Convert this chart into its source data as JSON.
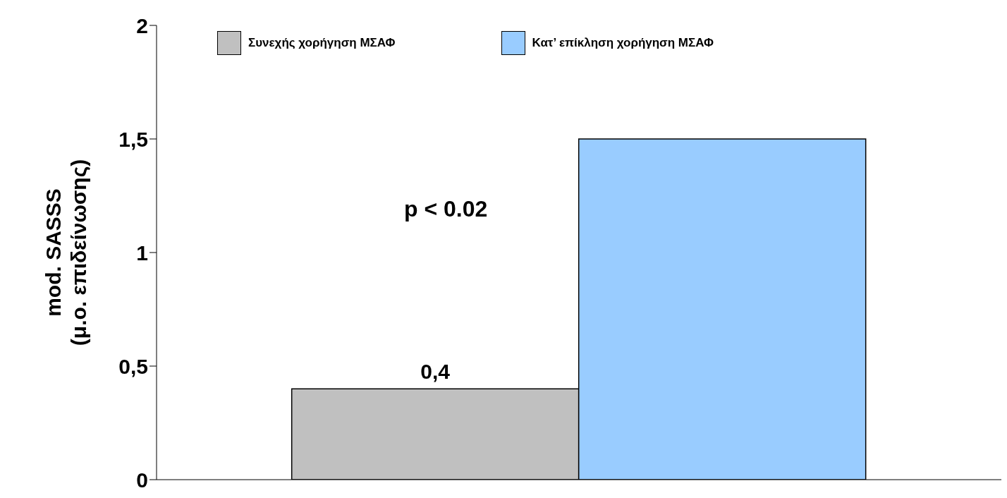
{
  "chart_data": {
    "type": "bar",
    "categories": [
      null
    ],
    "series": [
      {
        "name": "Συνεχής χορήγηση ΜΣΑΦ",
        "color": "#c0c0c0",
        "values": [
          0.4
        ],
        "value_labels": [
          "0,4"
        ]
      },
      {
        "name": "Κατ’ επίκληση χορήγηση ΜΣΑΦ",
        "color": "#99ccff",
        "values": [
          1.5
        ],
        "value_labels": [
          null
        ]
      }
    ],
    "ylabel": "mod. SASSS\n(μ.ο. επιδείνωσης)",
    "ylim": [
      0,
      2
    ],
    "yticks": [
      0,
      {
        "value": 0.5,
        "label": "0,5"
      },
      1,
      {
        "value": 1.5,
        "label": "1,5"
      },
      2
    ],
    "annotations": [
      "p < 0.02"
    ],
    "grid": false,
    "legend": "top"
  }
}
